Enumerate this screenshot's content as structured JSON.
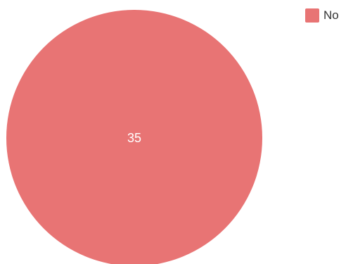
{
  "chart_data": {
    "type": "pie",
    "slices": [
      {
        "label": "No",
        "value": 35,
        "color": "#e87474"
      }
    ],
    "data_labels": [
      "35"
    ],
    "legend": {
      "position": "top-right",
      "entries": [
        "No"
      ]
    }
  }
}
